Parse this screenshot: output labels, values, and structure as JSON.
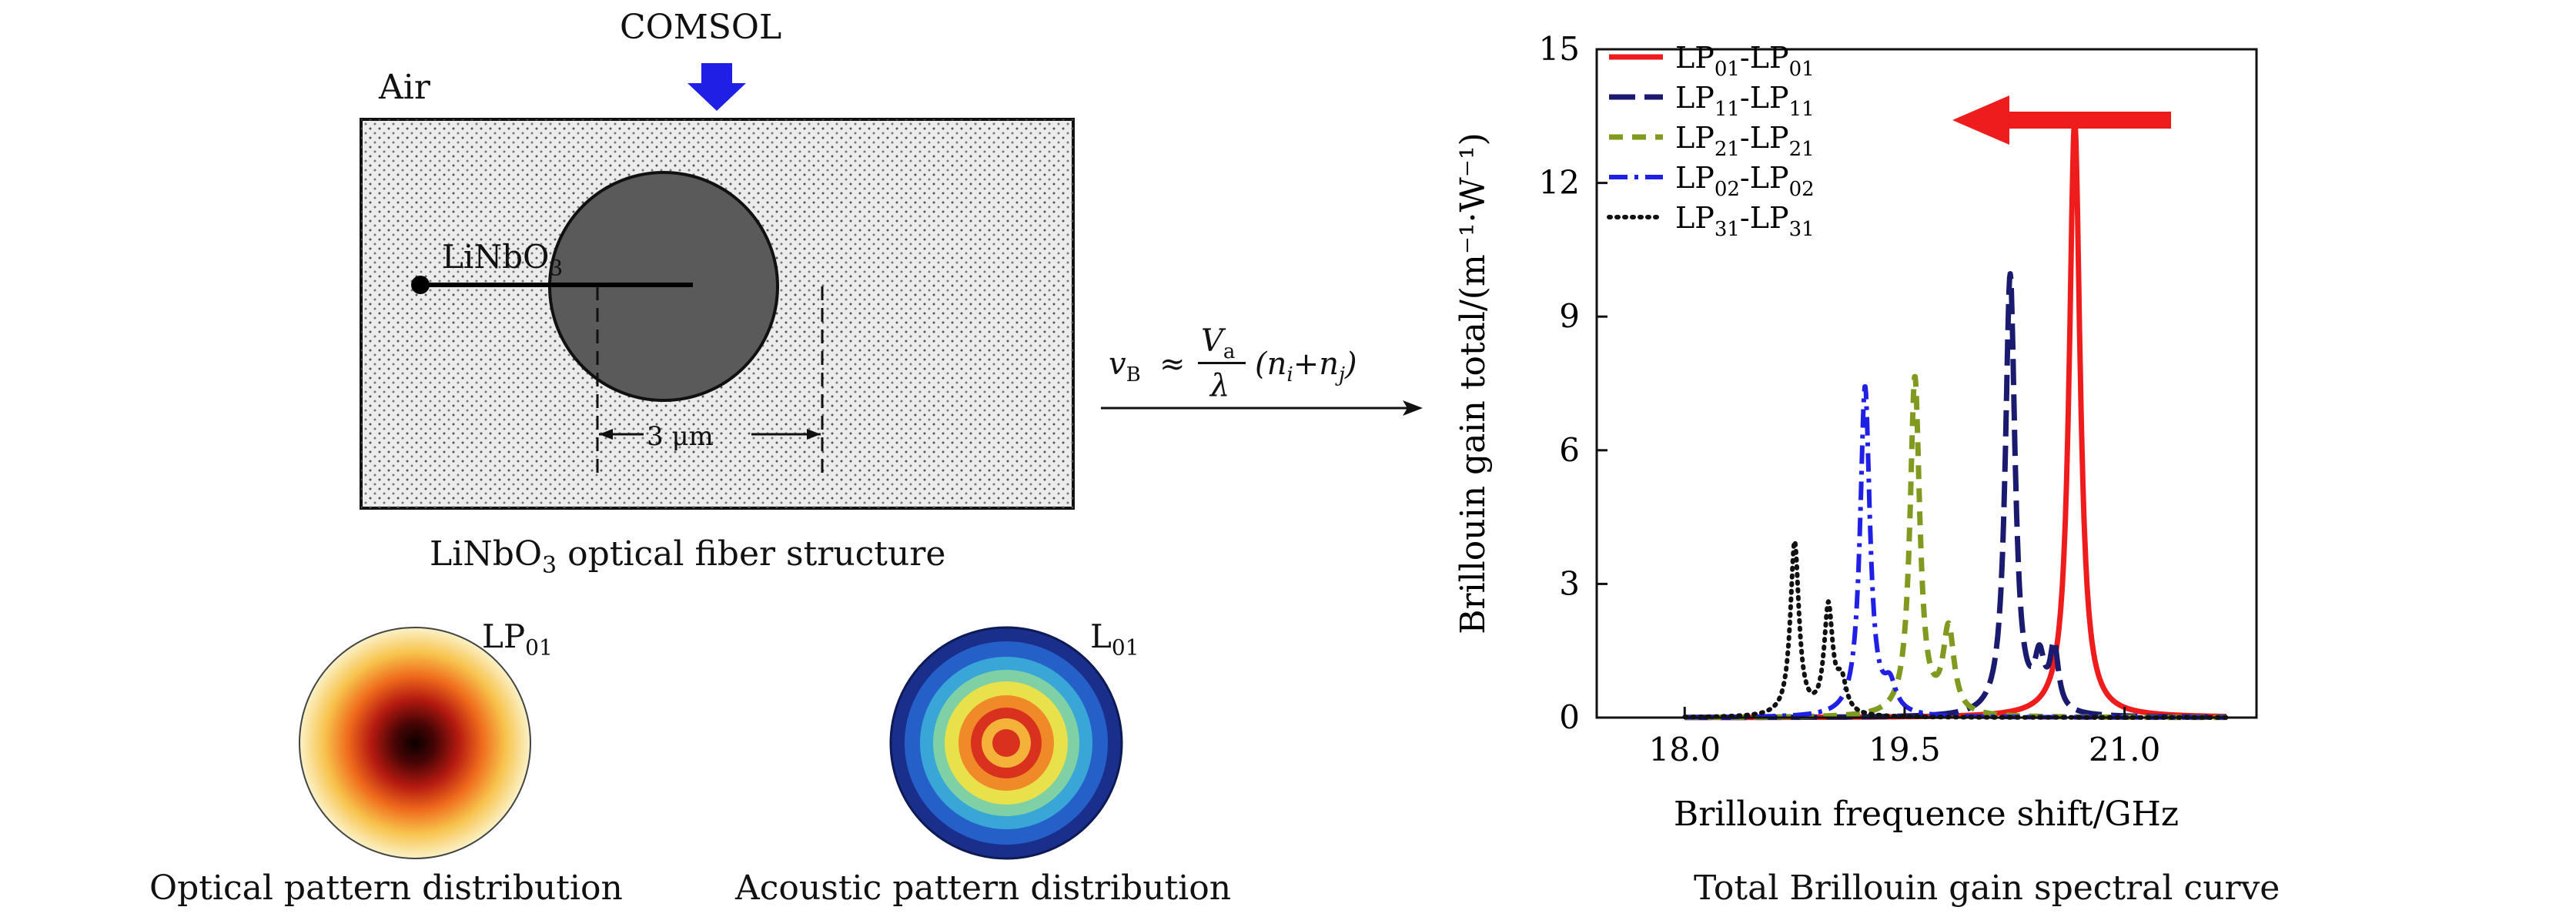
{
  "left_panel": {
    "comsol_label": "COMSOL",
    "air_label": "Air",
    "core_label": "LiNbO",
    "core_label_sub": "3",
    "dimension_label": "3 μm",
    "structure_caption_prefix": "LiNbO",
    "structure_caption_sub": "3",
    "structure_caption_suffix": " optical fiber structure",
    "optical_mode_label": "LP",
    "optical_mode_sub": "01",
    "acoustic_mode_label": "L",
    "acoustic_mode_sub": "01",
    "optical_caption": "Optical pattern distribution",
    "acoustic_caption": "Acoustic pattern distribution"
  },
  "formula": {
    "lhs": "v",
    "lhs_sub": "B",
    "approx": "≈",
    "num": "V",
    "num_sub": "a",
    "den": "λ",
    "tail": "(n",
    "tail_i": "i",
    "plus": "+n",
    "tail_j": "j",
    "close": ")"
  },
  "chart_caption": "Total Brillouin gain spectral curve",
  "colors": {
    "arrow_blue": "#1f1fe6",
    "arrow_red": "#ee1c1c",
    "lp01": "#ee1c1c",
    "lp11": "#1a1a6e",
    "lp21": "#7f9a1e",
    "lp02": "#1f1fe6",
    "lp31": "#111111"
  },
  "chart_data": {
    "type": "line",
    "xlabel": "Brillouin frequence shift/GHz",
    "ylabel": "Brillouin gain total/(m⁻¹·W⁻¹)",
    "xlim": [
      17.4,
      21.9
    ],
    "ylim": [
      0,
      15
    ],
    "xticks": [
      "18.0",
      "19.5",
      "21.0"
    ],
    "yticks": [
      "0",
      "3",
      "6",
      "9",
      "12",
      "15"
    ],
    "xtick_values": [
      18.0,
      19.5,
      21.0
    ],
    "ytick_values": [
      0,
      3,
      6,
      9,
      12,
      15
    ],
    "legend_position": "top-left",
    "annotation": "red arrow pointing left",
    "series": [
      {
        "name": "LP01-LP01",
        "base": "LP",
        "sub1": "01",
        "sub2": "01",
        "color": "#ee1c1c",
        "style": "solid",
        "peaks": [
          {
            "center": 20.66,
            "height": 13.4,
            "width": 0.045
          }
        ]
      },
      {
        "name": "LP11-LP11",
        "base": "LP",
        "sub1": "11",
        "sub2": "11",
        "color": "#1a1a6e",
        "style": "dash",
        "peaks": [
          {
            "center": 20.22,
            "height": 9.9,
            "width": 0.04
          },
          {
            "center": 20.42,
            "height": 1.1,
            "width": 0.04
          },
          {
            "center": 20.52,
            "height": 1.4,
            "width": 0.035
          }
        ]
      },
      {
        "name": "LP21-LP21",
        "base": "LP",
        "sub1": "21",
        "sub2": "21",
        "color": "#7f9a1e",
        "style": "dashshort",
        "peaks": [
          {
            "center": 19.57,
            "height": 7.6,
            "width": 0.04
          },
          {
            "center": 19.8,
            "height": 1.9,
            "width": 0.045
          }
        ]
      },
      {
        "name": "LP02-LP02",
        "base": "LP",
        "sub1": "02",
        "sub2": "02",
        "color": "#1f1fe6",
        "style": "dashdot",
        "peaks": [
          {
            "center": 19.23,
            "height": 7.4,
            "width": 0.04
          },
          {
            "center": 19.4,
            "height": 0.6,
            "width": 0.05
          }
        ]
      },
      {
        "name": "LP31-LP31",
        "base": "LP",
        "sub1": "31",
        "sub2": "31",
        "color": "#111111",
        "style": "dot",
        "peaks": [
          {
            "center": 18.75,
            "height": 3.9,
            "width": 0.035
          },
          {
            "center": 18.98,
            "height": 2.4,
            "width": 0.035
          },
          {
            "center": 19.07,
            "height": 0.7,
            "width": 0.04
          }
        ]
      }
    ]
  }
}
